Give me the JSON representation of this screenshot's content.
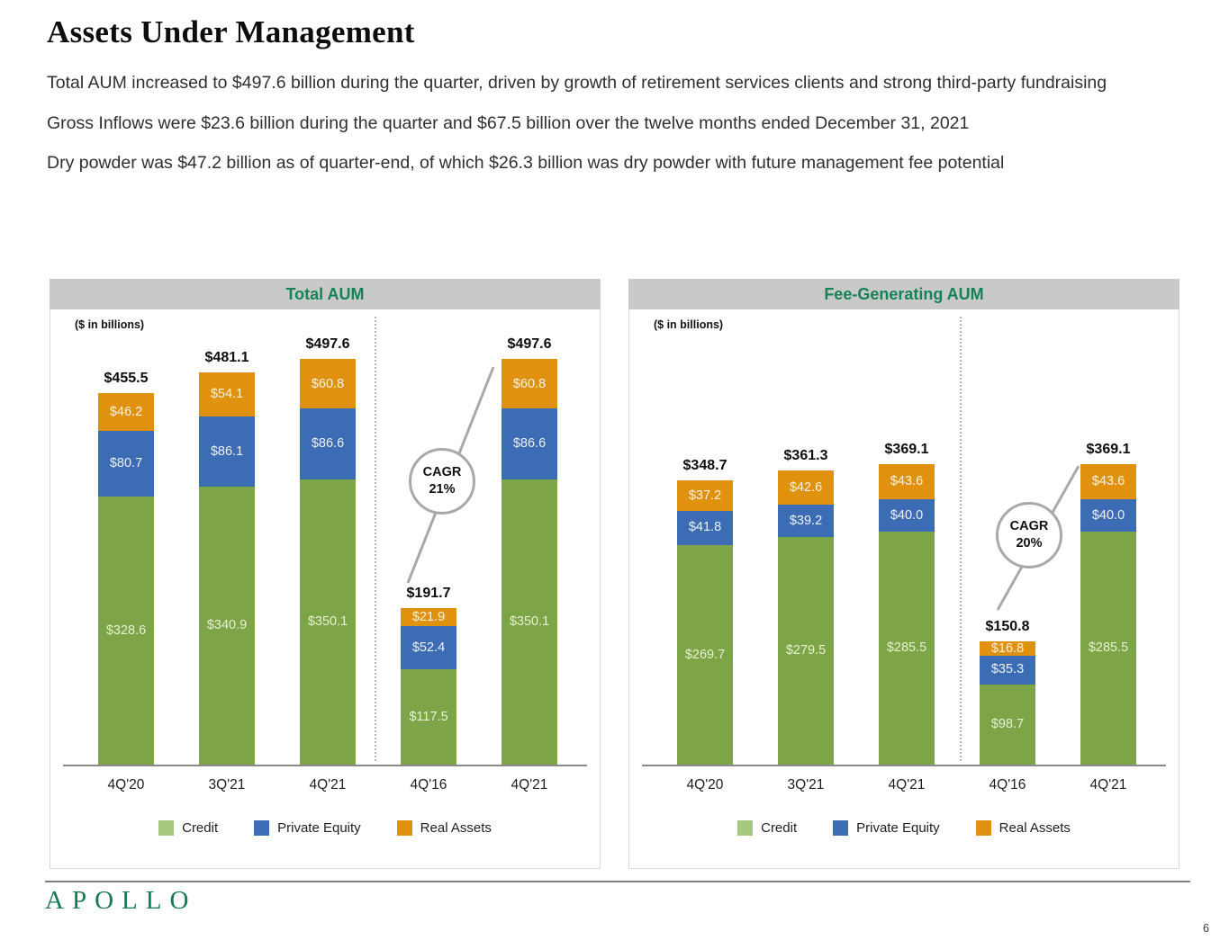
{
  "title": "Assets Under Management",
  "paragraphs": [
    "Total AUM increased to $497.6 billion during the quarter, driven by growth of retirement services clients and strong third-party fundraising",
    "Gross Inflows were $23.6 billion during the quarter and $67.5 billion over the twelve months ended December 31, 2021",
    "Dry powder was $47.2 billion as of quarter-end, of which $26.3 billion was dry powder with future management fee potential"
  ],
  "colors": {
    "credit_bar": "#7da447",
    "private_equity_bar": "#3c6cb4",
    "real_assets_bar": "#e0920f",
    "credit_legend": "#a6c97f",
    "header_band": "#c9c9c9",
    "chart_title_green": "#148355",
    "apollo_green": "#177b51"
  },
  "legend": [
    {
      "label": "Credit",
      "color": "#a6c97f"
    },
    {
      "label": "Private Equity",
      "color": "#3c6cb4"
    },
    {
      "label": "Real Assets",
      "color": "#e0920f"
    }
  ],
  "chart_data": [
    {
      "type": "bar",
      "stacked": true,
      "title": "Total AUM",
      "units": "($ in billions)",
      "categories": [
        "4Q'20",
        "3Q'21",
        "4Q'21",
        "4Q'16",
        "4Q'21"
      ],
      "series": [
        {
          "name": "Credit",
          "values": [
            328.6,
            340.9,
            350.1,
            117.5,
            350.1
          ]
        },
        {
          "name": "Private Equity",
          "values": [
            80.7,
            86.1,
            86.6,
            52.4,
            86.6
          ]
        },
        {
          "name": "Real Assets",
          "values": [
            46.2,
            54.1,
            60.8,
            21.9,
            60.8
          ]
        }
      ],
      "totals": [
        455.5,
        481.1,
        497.6,
        191.7,
        497.6
      ],
      "cagr": {
        "label": "CAGR",
        "value": "21%"
      },
      "divider_after_index": 2,
      "ylim": [
        0,
        560
      ],
      "gridlines": false,
      "legend_position": "bottom"
    },
    {
      "type": "bar",
      "stacked": true,
      "title": "Fee-Generating AUM",
      "units": "($ in billions)",
      "categories": [
        "4Q'20",
        "3Q'21",
        "4Q'21",
        "4Q'16",
        "4Q'21"
      ],
      "series": [
        {
          "name": "Credit",
          "values": [
            269.7,
            279.5,
            285.5,
            98.7,
            285.5
          ]
        },
        {
          "name": "Private Equity",
          "values": [
            41.8,
            39.2,
            40.0,
            35.3,
            40.0
          ]
        },
        {
          "name": "Real Assets",
          "values": [
            37.2,
            42.6,
            43.6,
            16.8,
            43.6
          ]
        }
      ],
      "totals": [
        348.7,
        361.3,
        369.1,
        150.8,
        369.1
      ],
      "cagr": {
        "label": "CAGR",
        "value": "20%"
      },
      "divider_after_index": 2,
      "ylim": [
        0,
        560
      ],
      "gridlines": false,
      "legend_position": "bottom"
    }
  ],
  "footer": {
    "logo": "APOLLO",
    "page_number": "6"
  }
}
